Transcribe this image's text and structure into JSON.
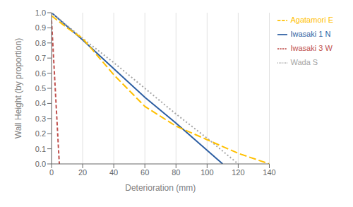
{
  "chart_data": {
    "type": "line",
    "xlabel": "Deterioration (mm)",
    "ylabel": "Wall Height (by proportion)",
    "xlim": [
      0,
      140
    ],
    "ylim": [
      0,
      1.0
    ],
    "xticks": [
      0,
      20,
      40,
      60,
      80,
      100,
      120,
      140
    ],
    "yticks": [
      {
        "value": 0,
        "label": "0.0"
      },
      0.1,
      0.2,
      0.3,
      0.4,
      0.5,
      0.6,
      0.7,
      0.8,
      0.9,
      {
        "value": 1.0,
        "label": "1.0"
      }
    ],
    "grid": "x",
    "legend": "right",
    "series": [
      {
        "name": "Iwasaki 1 N",
        "color": "#2e5fa3",
        "line_style": "solid",
        "x": [
          0,
          20,
          40,
          60,
          80,
          100,
          110
        ],
        "values": [
          1.0,
          0.82,
          0.63,
          0.44,
          0.27,
          0.09,
          0.0
        ]
      },
      {
        "name": "Iwasaki 3 W",
        "color": "#c0504d",
        "line_style": "dashed",
        "x": [
          0,
          1,
          2,
          3,
          4,
          5
        ],
        "values": [
          0.95,
          0.76,
          0.57,
          0.38,
          0.19,
          0.0
        ]
      },
      {
        "name": "Wada S",
        "color": "#a5a5a5",
        "line_style": "dotted",
        "x": [
          0,
          20,
          40,
          60,
          80,
          100,
          120
        ],
        "values": [
          1.0,
          0.83,
          0.67,
          0.5,
          0.33,
          0.17,
          0.0
        ]
      },
      {
        "name": "Agatamori E",
        "color": "#ffc000",
        "line_style": "longdash",
        "x": [
          0,
          10,
          20,
          40,
          60,
          80,
          100,
          120,
          140
        ],
        "values": [
          0.98,
          0.9,
          0.83,
          0.59,
          0.38,
          0.25,
          0.16,
          0.07,
          0.0
        ]
      }
    ]
  }
}
